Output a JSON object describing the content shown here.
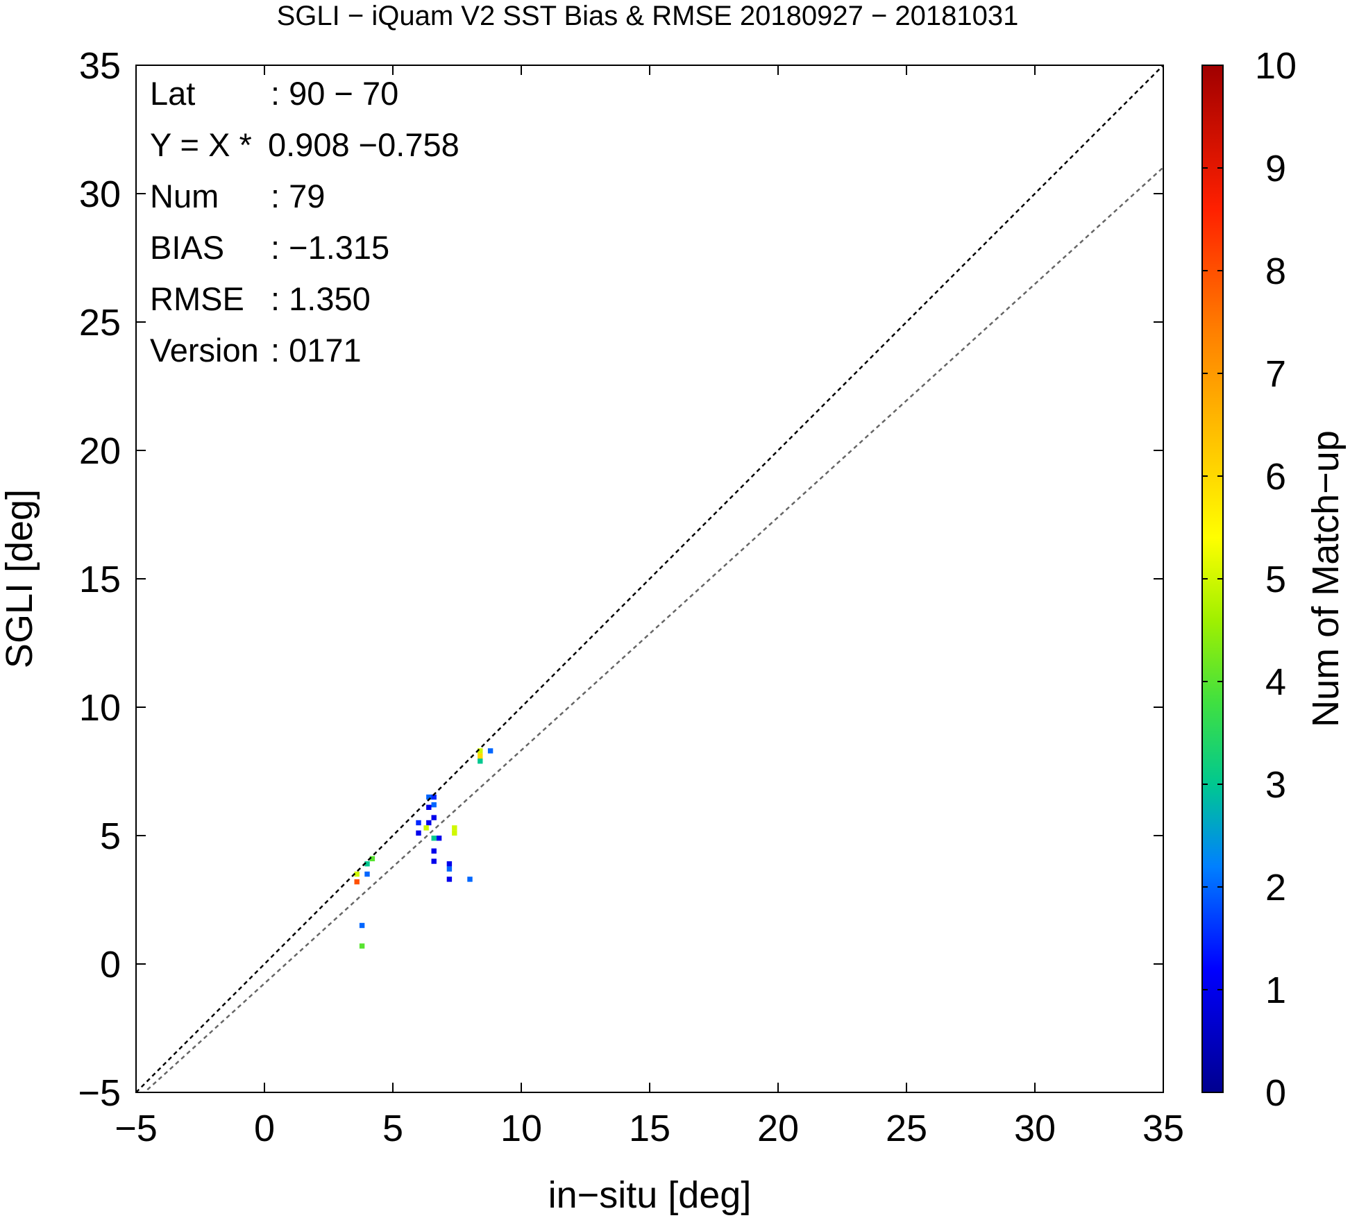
{
  "chart_data": {
    "type": "scatter",
    "title": "SGLI − iQuam V2 SST Bias & RMSE 20180927 − 20181031",
    "xlabel": "in−situ [deg]",
    "ylabel": "SGLI [deg]",
    "xlim": [
      -5,
      35
    ],
    "ylim": [
      -5,
      35
    ],
    "xticks": [
      "−5",
      "0",
      "5",
      "10",
      "15",
      "20",
      "25",
      "30",
      "35"
    ],
    "yticks": [
      "−5",
      "0",
      "5",
      "10",
      "15",
      "20",
      "25",
      "30",
      "35"
    ],
    "grid": false,
    "stats": [
      {
        "label": "Lat",
        "value": ": 90 − 70"
      },
      {
        "label": "Y = X *",
        "value": "0.908 −0.758"
      },
      {
        "label": "Num",
        "value": ": 79"
      },
      {
        "label": "BIAS",
        "value": ": −1.315"
      },
      {
        "label": "RMSE",
        "value": ": 1.350"
      },
      {
        "label": "Version",
        "value": ": 0171"
      }
    ],
    "reference_lines": [
      {
        "name": "1:1",
        "slope": 1.0,
        "intercept": 0.0,
        "color": "#000000",
        "dash": true
      },
      {
        "name": "regression",
        "slope": 0.908,
        "intercept": -0.758,
        "color": "#666666",
        "dash": true
      }
    ],
    "colorbar": {
      "label": "Num of Match−up",
      "min": 0,
      "max": 10,
      "ticks": [
        "0",
        "1",
        "2",
        "3",
        "4",
        "5",
        "6",
        "7",
        "8",
        "9",
        "10"
      ]
    },
    "points": [
      {
        "x": 3.6,
        "y": 3.5,
        "count": 5
      },
      {
        "x": 3.6,
        "y": 3.2,
        "count": 8
      },
      {
        "x": 3.8,
        "y": 1.5,
        "count": 2
      },
      {
        "x": 3.8,
        "y": 0.7,
        "count": 4
      },
      {
        "x": 4.0,
        "y": 3.9,
        "count": 3
      },
      {
        "x": 4.0,
        "y": 3.5,
        "count": 2
      },
      {
        "x": 4.2,
        "y": 4.1,
        "count": 4
      },
      {
        "x": 6.0,
        "y": 5.5,
        "count": 1.5
      },
      {
        "x": 6.0,
        "y": 5.1,
        "count": 1
      },
      {
        "x": 6.4,
        "y": 6.5,
        "count": 2
      },
      {
        "x": 6.4,
        "y": 6.1,
        "count": 1
      },
      {
        "x": 6.4,
        "y": 5.5,
        "count": 1
      },
      {
        "x": 6.3,
        "y": 5.3,
        "count": 5
      },
      {
        "x": 6.6,
        "y": 6.5,
        "count": 1.5
      },
      {
        "x": 6.6,
        "y": 6.2,
        "count": 2
      },
      {
        "x": 6.6,
        "y": 5.7,
        "count": 1
      },
      {
        "x": 6.6,
        "y": 4.9,
        "count": 3
      },
      {
        "x": 6.6,
        "y": 4.4,
        "count": 1
      },
      {
        "x": 6.6,
        "y": 4.0,
        "count": 1
      },
      {
        "x": 6.8,
        "y": 4.9,
        "count": 1
      },
      {
        "x": 7.2,
        "y": 3.9,
        "count": 1
      },
      {
        "x": 7.2,
        "y": 3.7,
        "count": 2
      },
      {
        "x": 7.2,
        "y": 3.3,
        "count": 1
      },
      {
        "x": 7.4,
        "y": 5.3,
        "count": 5
      },
      {
        "x": 7.4,
        "y": 5.1,
        "count": 5
      },
      {
        "x": 8.0,
        "y": 3.3,
        "count": 2
      },
      {
        "x": 8.4,
        "y": 8.3,
        "count": 5
      },
      {
        "x": 8.4,
        "y": 8.1,
        "count": 6
      },
      {
        "x": 8.4,
        "y": 7.9,
        "count": 3
      },
      {
        "x": 8.8,
        "y": 8.3,
        "count": 2
      }
    ]
  }
}
